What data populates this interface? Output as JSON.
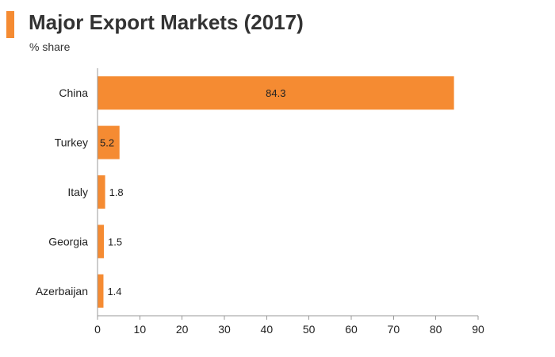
{
  "title": "Major Export Markets (2017)",
  "subtitle": "% share",
  "colors": {
    "bar": "#F58B32",
    "accent": "#F58B32",
    "axis": "#999999",
    "text": "#222222"
  },
  "chart_data": {
    "type": "bar",
    "orientation": "horizontal",
    "title": "Major Export Markets (2017)",
    "subtitle": "% share",
    "xlabel": "",
    "ylabel": "",
    "categories": [
      "China",
      "Turkey",
      "Italy",
      "Georgia",
      "Azerbaijan"
    ],
    "values": [
      84.3,
      5.2,
      1.8,
      1.5,
      1.4
    ],
    "value_labels": [
      "84.3",
      "5.2",
      "1.8",
      "1.5",
      "1.4"
    ],
    "xlim": [
      0,
      90
    ],
    "xticks": [
      0,
      10,
      20,
      30,
      40,
      50,
      60,
      70,
      80,
      90
    ],
    "grid": false,
    "legend": "none"
  }
}
